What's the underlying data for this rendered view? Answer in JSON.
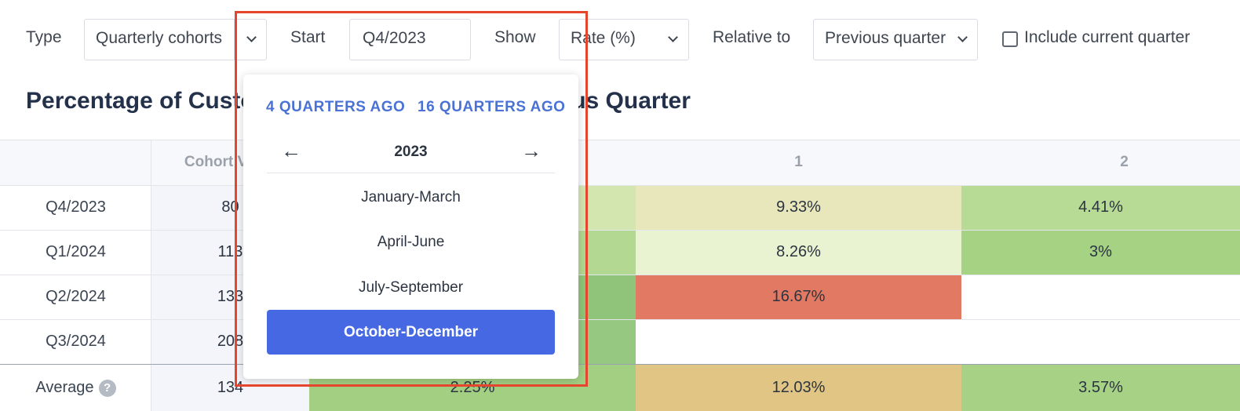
{
  "toolbar": {
    "type_label": "Type",
    "type_value": "Quarterly cohorts",
    "start_label": "Start",
    "start_value": "Q4/2023",
    "show_label": "Show",
    "show_value": "Rate (%)",
    "relative_label": "Relative to",
    "relative_value": "Previous quarter",
    "include_label": "Include current quarter",
    "include_checked": false
  },
  "title": "Percentage of Customers Lost Relative to Previous Quarter",
  "table": {
    "headers": [
      "Cohort Value",
      "1",
      "2"
    ],
    "rows": [
      {
        "label": "Q4/2023",
        "size": "80",
        "c0": "",
        "c1": "9.33%",
        "c2": "4.41%"
      },
      {
        "label": "Q1/2024",
        "size": "113",
        "c0": "",
        "c1": "8.26%",
        "c2": "3%"
      },
      {
        "label": "Q2/2024",
        "size": "133",
        "c0": "",
        "c1": "16.67%",
        "c2": ""
      },
      {
        "label": "Q3/2024",
        "size": "208",
        "c0": "",
        "c1": "",
        "c2": ""
      }
    ],
    "average": {
      "label": "Average",
      "size": "134",
      "c0": "2.25%",
      "c1": "12.03%",
      "c2": "3.57%"
    }
  },
  "popover": {
    "link_4q": "4 QUARTERS AGO",
    "link_16q": "16 QUARTERS AGO",
    "year": "2023",
    "quarters": [
      "January-March",
      "April-June",
      "July-September",
      "October-December"
    ],
    "selected_index": 3
  },
  "colors": {
    "accent": "#4669e3",
    "link": "#4a72d6",
    "highlight": "#e4452c"
  },
  "icons": [
    "chevron-down-icon",
    "arrow-left-icon",
    "arrow-right-icon",
    "help-icon",
    "checkbox-icon"
  ]
}
